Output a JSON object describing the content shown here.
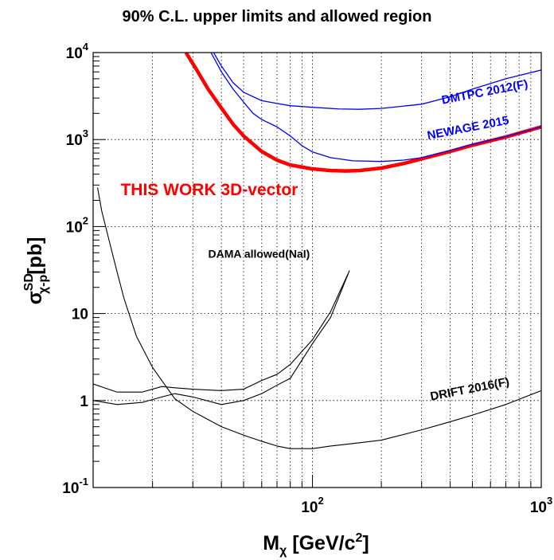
{
  "chart_data": {
    "type": "line",
    "title": "90% C.L. upper limits and allowed region",
    "xlabel": {
      "base": "M",
      "sub": "χ",
      "unit_pre": " [GeV/c",
      "unit_sup": "2",
      "unit_post": "]"
    },
    "ylabel": {
      "base": "σ",
      "sub": "χ-p",
      "sup": "SD",
      "unit": "[pb]"
    },
    "x_scale": "log",
    "y_scale": "log",
    "xlim": [
      11,
      1000
    ],
    "ylim": [
      0.1,
      10000
    ],
    "grid": true,
    "x_ticks": [
      {
        "value": 100,
        "base": "10",
        "exp": "2"
      },
      {
        "value": 1000,
        "base": "10",
        "exp": "3"
      }
    ],
    "y_ticks": [
      {
        "value": 0.1,
        "base": "10",
        "exp": "-1"
      },
      {
        "value": 1,
        "base": "1",
        "exp": ""
      },
      {
        "value": 10,
        "base": "10",
        "exp": ""
      },
      {
        "value": 100,
        "base": "10",
        "exp": "2"
      },
      {
        "value": 1000,
        "base": "10",
        "exp": "3"
      },
      {
        "value": 10000,
        "base": "10",
        "exp": "4"
      }
    ],
    "series": [
      {
        "name": "THIS WORK 3D-vector",
        "color": "#ff0000",
        "width": 4.5,
        "x": [
          28,
          31,
          35,
          40,
          45,
          50,
          60,
          70,
          80,
          100,
          120,
          140,
          160,
          200,
          250,
          300,
          400,
          500,
          700,
          1000
        ],
        "y": [
          10000,
          6500,
          3800,
          2300,
          1500,
          1100,
          730,
          580,
          510,
          460,
          440,
          435,
          440,
          470,
          530,
          600,
          730,
          860,
          1070,
          1400
        ]
      },
      {
        "name": "NEWAGE 2015",
        "color": "#0000ff",
        "width": 1.3,
        "x": [
          36,
          40,
          45,
          50,
          55,
          60,
          70,
          80,
          90,
          100,
          120,
          150,
          200,
          250,
          300,
          400,
          500,
          700,
          1000
        ],
        "y": [
          10000,
          6000,
          3800,
          2700,
          2000,
          1700,
          1400,
          1100,
          850,
          720,
          620,
          570,
          560,
          580,
          620,
          750,
          880,
          1080,
          1400
        ]
      },
      {
        "name": "DMTPC 2012(F)",
        "color": "#0000ff",
        "width": 1.3,
        "x": [
          37,
          40,
          45,
          50,
          60,
          70,
          80,
          100,
          130,
          160,
          200,
          300,
          400,
          500,
          700,
          1000
        ],
        "y": [
          10000,
          7000,
          4500,
          3500,
          2800,
          2600,
          2450,
          2350,
          2250,
          2230,
          2280,
          2550,
          3100,
          3800,
          5000,
          6300
        ]
      },
      {
        "name": "DRIFT 2016(F)",
        "color": "#000000",
        "width": 1.1,
        "x": [
          11.5,
          12,
          13,
          14,
          15,
          17,
          20,
          25,
          30,
          40,
          50,
          60,
          70,
          80,
          100,
          120,
          150,
          200,
          300,
          400,
          500,
          700,
          1000
        ],
        "y": [
          280,
          150,
          65,
          30,
          15,
          5.5,
          2.4,
          1.05,
          0.75,
          0.5,
          0.4,
          0.34,
          0.3,
          0.28,
          0.28,
          0.3,
          0.32,
          0.35,
          0.46,
          0.57,
          0.68,
          0.9,
          1.3
        ]
      },
      {
        "name": "DAMA allowed(NaI)",
        "color": "#000000",
        "width": 1.1,
        "closed": true,
        "x": [
          11,
          14,
          18,
          22,
          25,
          30,
          40,
          50,
          60,
          70,
          80,
          100,
          120,
          145,
          145,
          120,
          100,
          80,
          70,
          60,
          50,
          40,
          30,
          25,
          22,
          18,
          14,
          11
        ],
        "y": [
          1.55,
          1.25,
          1.25,
          1.45,
          1.4,
          1.35,
          1.3,
          1.35,
          1.7,
          2.0,
          2.6,
          5.0,
          10.5,
          31,
          31,
          9.0,
          4.5,
          1.8,
          1.5,
          1.2,
          1.0,
          0.9,
          1.1,
          1.2,
          1.1,
          0.95,
          0.9,
          1.0
        ]
      }
    ],
    "annotations": [
      {
        "text": "THIS WORK 3D-vector",
        "x": 14.5,
        "y": 230,
        "color": "#ff0000",
        "size": 21,
        "angle": 0
      },
      {
        "text": "NEWAGE 2015",
        "x": 320,
        "y": 1000,
        "color": "#0000ff",
        "size": 15,
        "angle": -11
      },
      {
        "text": "DMTPC 2012(F)",
        "x": 370,
        "y": 2550,
        "color": "#0000ff",
        "size": 15,
        "angle": -11
      },
      {
        "text": "DAMA allowed(NaI)",
        "x": 35,
        "y": 44,
        "color": "#000000",
        "size": 14,
        "angle": 0
      },
      {
        "text": "DRIFT 2016(F)",
        "x": 330,
        "y": 1.0,
        "color": "#000000",
        "size": 15,
        "angle": -11
      }
    ]
  }
}
